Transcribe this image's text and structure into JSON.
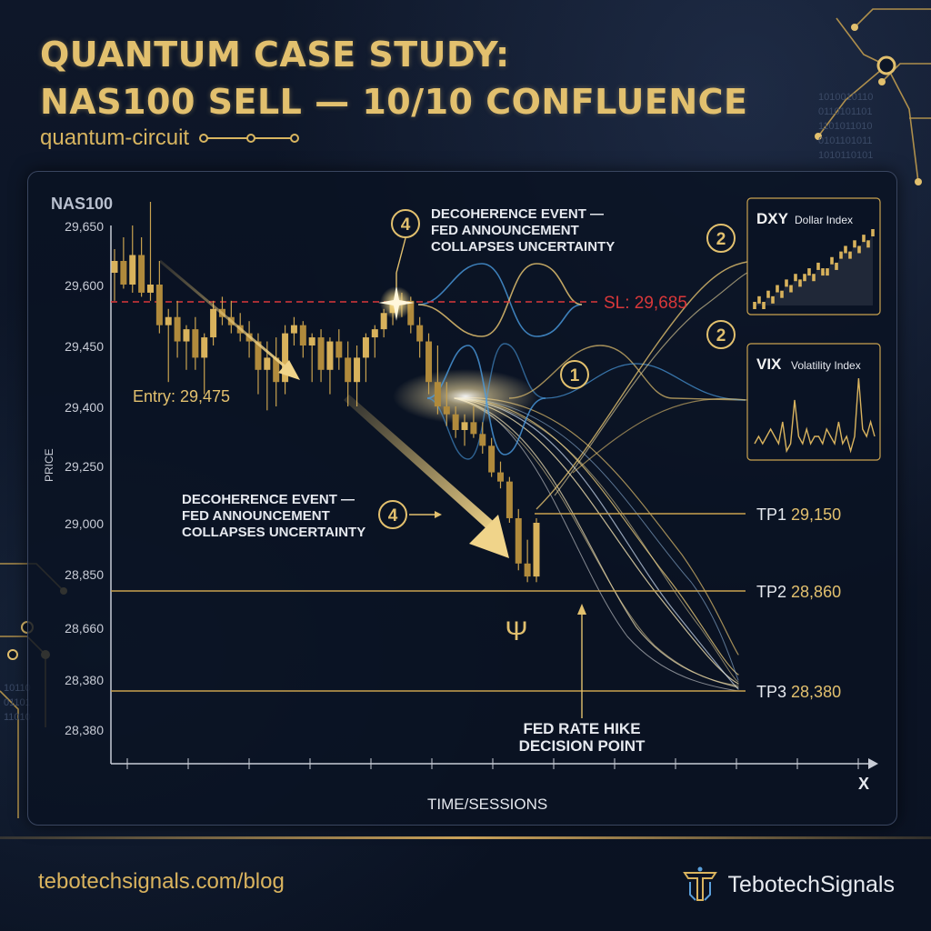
{
  "header": {
    "title_line1": "QUANTUM CASE STUDY:",
    "title_line2": "NAS100 SELL — 10/10 CONFLUENCE",
    "subtitle": "quantum-circuit"
  },
  "chart_data": {
    "type": "candlestick",
    "symbol": "NAS100",
    "ylabel": "PRICE",
    "xlabel": "TIME/SESSIONS",
    "x_axis_end_label": "X",
    "y_tick_labels": [
      "29,650",
      "29,600",
      "29,450",
      "29,400",
      "29,250",
      "29,000",
      "28,850",
      "28,660",
      "28,380",
      "28,380"
    ],
    "candles": [
      {
        "o": 29610,
        "h": 29630,
        "l": 29560,
        "c": 29620
      },
      {
        "o": 29620,
        "h": 29640,
        "l": 29590,
        "c": 29600
      },
      {
        "o": 29600,
        "h": 29650,
        "l": 29580,
        "c": 29625
      },
      {
        "o": 29625,
        "h": 29640,
        "l": 29570,
        "c": 29580
      },
      {
        "o": 29580,
        "h": 29670,
        "l": 29560,
        "c": 29600
      },
      {
        "o": 29600,
        "h": 29620,
        "l": 29480,
        "c": 29500
      },
      {
        "o": 29500,
        "h": 29540,
        "l": 29420,
        "c": 29520
      },
      {
        "o": 29520,
        "h": 29560,
        "l": 29440,
        "c": 29460
      },
      {
        "o": 29460,
        "h": 29500,
        "l": 29430,
        "c": 29490
      },
      {
        "o": 29490,
        "h": 29520,
        "l": 29430,
        "c": 29440
      },
      {
        "o": 29440,
        "h": 29480,
        "l": 29410,
        "c": 29470
      },
      {
        "o": 29470,
        "h": 29560,
        "l": 29450,
        "c": 29540
      },
      {
        "o": 29540,
        "h": 29570,
        "l": 29500,
        "c": 29520
      },
      {
        "o": 29520,
        "h": 29560,
        "l": 29480,
        "c": 29500
      },
      {
        "o": 29500,
        "h": 29530,
        "l": 29460,
        "c": 29480
      },
      {
        "o": 29480,
        "h": 29510,
        "l": 29440,
        "c": 29460
      },
      {
        "o": 29460,
        "h": 29480,
        "l": 29410,
        "c": 29430
      },
      {
        "o": 29430,
        "h": 29460,
        "l": 29390,
        "c": 29440
      },
      {
        "o": 29440,
        "h": 29470,
        "l": 29400,
        "c": 29420
      },
      {
        "o": 29420,
        "h": 29500,
        "l": 29410,
        "c": 29480
      },
      {
        "o": 29480,
        "h": 29520,
        "l": 29450,
        "c": 29500
      },
      {
        "o": 29500,
        "h": 29510,
        "l": 29440,
        "c": 29450
      },
      {
        "o": 29450,
        "h": 29480,
        "l": 29420,
        "c": 29470
      },
      {
        "o": 29470,
        "h": 29490,
        "l": 29420,
        "c": 29430
      },
      {
        "o": 29430,
        "h": 29470,
        "l": 29410,
        "c": 29460
      },
      {
        "o": 29460,
        "h": 29490,
        "l": 29430,
        "c": 29440
      },
      {
        "o": 29440,
        "h": 29460,
        "l": 29400,
        "c": 29420
      },
      {
        "o": 29420,
        "h": 29450,
        "l": 29400,
        "c": 29440
      },
      {
        "o": 29440,
        "h": 29480,
        "l": 29420,
        "c": 29470
      },
      {
        "o": 29470,
        "h": 29500,
        "l": 29440,
        "c": 29490
      },
      {
        "o": 29490,
        "h": 29540,
        "l": 29470,
        "c": 29530
      },
      {
        "o": 29530,
        "h": 29560,
        "l": 29500,
        "c": 29550
      },
      {
        "o": 29550,
        "h": 29580,
        "l": 29520,
        "c": 29560
      },
      {
        "o": 29560,
        "h": 29570,
        "l": 29480,
        "c": 29500
      },
      {
        "o": 29500,
        "h": 29520,
        "l": 29440,
        "c": 29460
      },
      {
        "o": 29460,
        "h": 29480,
        "l": 29410,
        "c": 29420
      },
      {
        "o": 29420,
        "h": 29450,
        "l": 29380,
        "c": 29400
      },
      {
        "o": 29400,
        "h": 29420,
        "l": 29350,
        "c": 29380
      },
      {
        "o": 29380,
        "h": 29400,
        "l": 29320,
        "c": 29340
      },
      {
        "o": 29340,
        "h": 29380,
        "l": 29300,
        "c": 29360
      },
      {
        "o": 29360,
        "h": 29400,
        "l": 29320,
        "c": 29330
      },
      {
        "o": 29330,
        "h": 29360,
        "l": 29280,
        "c": 29300
      },
      {
        "o": 29300,
        "h": 29320,
        "l": 29200,
        "c": 29220
      },
      {
        "o": 29220,
        "h": 29260,
        "l": 29150,
        "c": 29180
      },
      {
        "o": 29180,
        "h": 29200,
        "l": 29000,
        "c": 29020
      },
      {
        "o": 29020,
        "h": 29060,
        "l": 28860,
        "c": 28880
      },
      {
        "o": 28880,
        "h": 28950,
        "l": 28820,
        "c": 28840
      },
      {
        "o": 28840,
        "h": 29020,
        "l": 28820,
        "c": 29000
      }
    ],
    "levels": {
      "stop_loss": {
        "label": "SL: 29,685",
        "value": 29685
      },
      "entry": {
        "label": "Entry: 29,475",
        "value": 29475
      },
      "tp1": {
        "label": "TP1",
        "value_label": "29,150",
        "value": 29150
      },
      "tp2": {
        "label": "TP2",
        "value_label": "28,860",
        "value": 28860
      },
      "tp3": {
        "label": "TP3",
        "value_label": "28,380",
        "value": 28380
      }
    },
    "annotations": {
      "decoherence_top": {
        "number": "4",
        "lines": [
          "DECOHERENCE EVENT —",
          "FED ANNOUNCEMENT",
          "COLLAPSES UNCERTAINTY"
        ]
      },
      "decoherence_left": {
        "number": "4",
        "lines": [
          "DECOHERENCE EVENT —",
          "FED ANNOUNCEMENT",
          "COLLAPSES UNCERTAINTY"
        ]
      },
      "marker_1": "1",
      "marker_2a": "2",
      "marker_2b": "2",
      "psi": "Ψ",
      "fed_lines": [
        "FED RATE HIKE",
        "DECISION POINT"
      ]
    },
    "insets": [
      {
        "symbol": "DXY",
        "name": "Dollar Index",
        "type": "candlestick",
        "values": [
          2,
          3,
          2,
          4,
          3,
          5,
          4,
          6,
          5,
          7,
          6,
          7,
          8,
          7,
          9,
          8,
          8,
          10,
          9,
          11,
          12,
          11,
          13,
          12,
          14,
          13,
          15
        ]
      },
      {
        "symbol": "VIX",
        "name": "Volatility Index",
        "type": "line",
        "values": [
          3,
          4,
          3,
          4,
          5,
          4,
          3,
          6,
          2,
          3,
          9,
          4,
          3,
          5,
          3,
          4,
          4,
          3,
          5,
          4,
          3,
          6,
          3,
          4,
          2,
          4,
          12,
          5,
          4,
          6,
          4
        ]
      }
    ]
  },
  "colors": {
    "gold": "#e2c06e",
    "candle": "#c9a24f",
    "stop_loss": "#d9383a",
    "wave_blue": "#4a9be0",
    "text_light": "#e6e9ef",
    "axis": "#c8ccd6"
  },
  "footer": {
    "link": "tebotechsignals.com/blog",
    "brand": "TebotechSignals",
    "brand_icon": "tebotech-logo-icon"
  }
}
